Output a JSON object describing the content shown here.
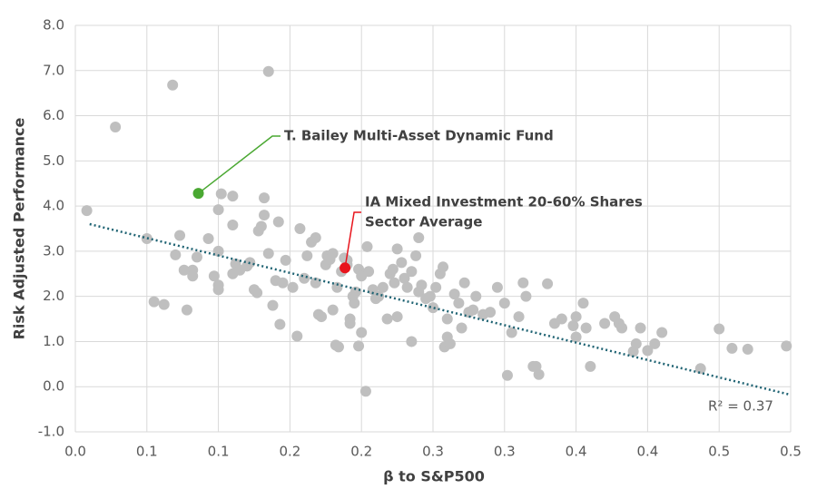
{
  "chart_data": {
    "type": "scatter",
    "x_label": "β to S&P500",
    "y_label": "Risk Adjusted Performance",
    "xlim": [
      0,
      0.5
    ],
    "ylim": [
      -1,
      8
    ],
    "xticks": [
      {
        "value": 0,
        "label": "0.0"
      },
      {
        "value": 0.05,
        "label": "0.1"
      },
      {
        "value": 0.1,
        "label": "0.1"
      },
      {
        "value": 0.15,
        "label": "0.2"
      },
      {
        "value": 0.2,
        "label": "0.2"
      },
      {
        "value": 0.25,
        "label": "0.3"
      },
      {
        "value": 0.3,
        "label": "0.3"
      },
      {
        "value": 0.35,
        "label": "0.4"
      },
      {
        "value": 0.4,
        "label": "0.4"
      },
      {
        "value": 0.45,
        "label": "0.5"
      },
      {
        "value": 0.5,
        "label": "0.5"
      }
    ],
    "yticks": [
      {
        "value": -1,
        "label": "-1.0"
      },
      {
        "value": 0,
        "label": "0.0"
      },
      {
        "value": 1,
        "label": "1.0"
      },
      {
        "value": 2,
        "label": "2.0"
      },
      {
        "value": 3,
        "label": "3.0"
      },
      {
        "value": 4,
        "label": "4.0"
      },
      {
        "value": 5,
        "label": "5.0"
      },
      {
        "value": 6,
        "label": "6.0"
      },
      {
        "value": 7,
        "label": "7.0"
      },
      {
        "value": 8,
        "label": "8.0"
      }
    ],
    "grid": true,
    "series": [
      {
        "color": "#bfbfbf",
        "x": [
          0.008,
          0.028,
          0.068,
          0.135,
          0.05,
          0.055,
          0.062,
          0.07,
          0.073,
          0.076,
          0.078,
          0.082,
          0.082,
          0.085,
          0.093,
          0.097,
          0.1,
          0.1,
          0.1,
          0.1,
          0.102,
          0.11,
          0.11,
          0.112,
          0.11,
          0.115,
          0.12,
          0.122,
          0.125,
          0.127,
          0.128,
          0.13,
          0.132,
          0.132,
          0.135,
          0.138,
          0.14,
          0.142,
          0.145,
          0.143,
          0.147,
          0.152,
          0.155,
          0.157,
          0.16,
          0.162,
          0.165,
          0.168,
          0.168,
          0.17,
          0.172,
          0.175,
          0.176,
          0.178,
          0.18,
          0.18,
          0.182,
          0.183,
          0.184,
          0.186,
          0.188,
          0.19,
          0.19,
          0.192,
          0.192,
          0.194,
          0.195,
          0.196,
          0.198,
          0.198,
          0.2,
          0.2,
          0.203,
          0.204,
          0.205,
          0.208,
          0.21,
          0.212,
          0.215,
          0.218,
          0.22,
          0.222,
          0.223,
          0.225,
          0.225,
          0.228,
          0.23,
          0.232,
          0.235,
          0.235,
          0.238,
          0.24,
          0.24,
          0.242,
          0.245,
          0.248,
          0.25,
          0.252,
          0.255,
          0.257,
          0.258,
          0.26,
          0.26,
          0.262,
          0.265,
          0.268,
          0.27,
          0.272,
          0.275,
          0.278,
          0.28,
          0.285,
          0.29,
          0.295,
          0.3,
          0.302,
          0.305,
          0.31,
          0.313,
          0.315,
          0.32,
          0.322,
          0.324,
          0.33,
          0.335,
          0.34,
          0.348,
          0.35,
          0.35,
          0.355,
          0.357,
          0.36,
          0.37,
          0.377,
          0.38,
          0.382,
          0.39,
          0.392,
          0.395,
          0.4,
          0.405,
          0.41,
          0.437,
          0.45,
          0.459,
          0.47,
          0.497
        ],
        "values": [
          3.9,
          5.75,
          6.68,
          6.98,
          3.28,
          1.88,
          1.82,
          2.92,
          3.35,
          2.58,
          1.7,
          2.58,
          2.45,
          2.87,
          3.28,
          2.45,
          2.25,
          2.15,
          3.0,
          3.92,
          4.27,
          4.22,
          3.58,
          2.72,
          2.5,
          2.58,
          2.67,
          2.75,
          2.15,
          2.08,
          3.45,
          3.55,
          4.18,
          3.8,
          2.95,
          1.8,
          2.35,
          3.65,
          2.3,
          1.38,
          2.8,
          2.2,
          1.12,
          3.5,
          2.4,
          2.9,
          3.2,
          3.3,
          2.3,
          1.6,
          1.55,
          2.7,
          2.9,
          2.82,
          2.95,
          1.7,
          0.92,
          2.2,
          0.88,
          2.55,
          2.85,
          2.8,
          2.7,
          1.5,
          1.4,
          2.0,
          1.85,
          2.1,
          2.6,
          0.9,
          1.2,
          2.45,
          -0.1,
          3.1,
          2.55,
          2.15,
          1.95,
          2.0,
          2.2,
          1.5,
          2.5,
          2.6,
          2.3,
          1.55,
          3.05,
          2.75,
          2.4,
          2.2,
          2.55,
          1.0,
          2.9,
          2.1,
          3.3,
          2.25,
          1.95,
          2.0,
          1.75,
          2.2,
          2.5,
          2.65,
          0.88,
          1.1,
          1.5,
          0.95,
          2.05,
          1.85,
          1.3,
          2.3,
          1.65,
          1.7,
          2.0,
          1.6,
          1.65,
          2.2,
          1.85,
          0.25,
          1.2,
          1.55,
          2.3,
          2.0,
          0.45,
          0.45,
          0.27,
          2.28,
          1.4,
          1.5,
          1.35,
          1.55,
          1.1,
          1.85,
          1.3,
          0.45,
          1.4,
          1.55,
          1.4,
          1.3,
          0.78,
          0.95,
          1.3,
          0.8,
          0.95,
          1.2,
          0.4,
          1.28,
          0.85,
          0.83,
          0.9
        ]
      }
    ],
    "trendline": {
      "color": "#1f6373",
      "x": [
        0.01,
        0.5
      ],
      "values": [
        3.6,
        -0.18
      ]
    },
    "r_squared_label": "R² = 0.37",
    "annotations": [
      {
        "text": [
          "T. Bailey Multi-Asset Dynamic Fund"
        ],
        "color": "#4aa832",
        "x": 0.086,
        "y": 4.28
      },
      {
        "text": [
          "IA Mixed Investment 20-60% Shares",
          "Sector Average"
        ],
        "color": "#e8141c",
        "x": 0.1885,
        "y": 2.63
      }
    ]
  }
}
